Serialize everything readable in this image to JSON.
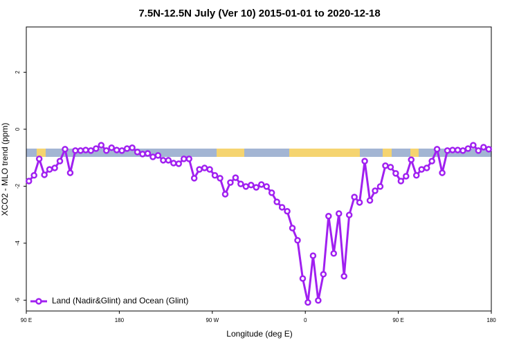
{
  "chart_data": {
    "type": "line",
    "title": "7.5N-12.5N July (Ver 10)   2015-01-01 to 2020-12-18",
    "x_label": "Longitude (deg E)",
    "y_label": "XCO2 - MLO trend (ppm)",
    "xlim": [
      90,
      540
    ],
    "ylim": [
      -6.38,
      3.59
    ],
    "xticks": [
      {
        "value": 90,
        "label": "90 E"
      },
      {
        "value": 180,
        "label": "180"
      },
      {
        "value": 270,
        "label": "90 W"
      },
      {
        "value": 360,
        "label": "0"
      },
      {
        "value": 450,
        "label": "90 E"
      },
      {
        "value": 540,
        "label": "180"
      }
    ],
    "yticks": [
      -6,
      -4,
      -2,
      0,
      2
    ],
    "legend": "bottom-left",
    "x": [
      92.5,
      97.5,
      102.5,
      107.5,
      112.5,
      117.5,
      122.5,
      127.5,
      132.5,
      137.5,
      142.5,
      147.5,
      152.5,
      157.5,
      162.5,
      167.5,
      172.5,
      177.5,
      182.5,
      187.5,
      192.5,
      197.5,
      202.5,
      207.5,
      212.5,
      217.5,
      222.5,
      227.5,
      232.5,
      237.5,
      242.5,
      247.5,
      252.5,
      257.5,
      262.5,
      267.5,
      272.5,
      277.5,
      282.5,
      287.5,
      292.5,
      297.5,
      302.5,
      307.5,
      312.5,
      317.5,
      322.5,
      327.5,
      332.5,
      337.5,
      342.5,
      347.5,
      352.5,
      357.5,
      362.5,
      367.5,
      372.5,
      377.5,
      382.5,
      387.5,
      392.5,
      397.5,
      402.5,
      407.5,
      412.5,
      417.5,
      422.5,
      427.5,
      432.5,
      437.5,
      442.5,
      447.5,
      452.5,
      457.5,
      462.5,
      467.5,
      472.5,
      477.5,
      482.5,
      487.5,
      492.5,
      497.5,
      502.5,
      507.5,
      512.5,
      517.5,
      522.5,
      527.5,
      532.5,
      537.5
    ],
    "series": [
      {
        "name": "Land (Nadir&Glint) and Ocean (Glint)",
        "color": "#a020f0",
        "values": [
          -1.82,
          -1.62,
          -1.04,
          -1.6,
          -1.41,
          -1.36,
          -1.12,
          -0.7,
          -1.53,
          -0.75,
          -0.75,
          -0.73,
          -0.75,
          -0.68,
          -0.56,
          -0.75,
          -0.65,
          -0.73,
          -0.75,
          -0.68,
          -0.65,
          -0.8,
          -0.87,
          -0.85,
          -0.97,
          -0.92,
          -1.09,
          -1.09,
          -1.19,
          -1.21,
          -1.04,
          -1.04,
          -1.72,
          -1.41,
          -1.36,
          -1.41,
          -1.62,
          -1.72,
          -2.28,
          -1.87,
          -1.7,
          -1.92,
          -2.01,
          -1.96,
          -2.04,
          -1.94,
          -2.01,
          -2.23,
          -2.55,
          -2.74,
          -2.88,
          -3.47,
          -3.9,
          -5.24,
          -6.08,
          -4.44,
          -6.01,
          -5.09,
          -3.05,
          -4.36,
          -2.96,
          -5.16,
          -3.01,
          -2.38,
          -2.57,
          -1.12,
          -2.5,
          -2.16,
          -2.01,
          -1.28,
          -1.33,
          -1.55,
          -1.82,
          -1.65,
          -1.07,
          -1.62,
          -1.41,
          -1.36,
          -1.12,
          -0.7,
          -1.53,
          -0.75,
          -0.73,
          -0.73,
          -0.75,
          -0.68,
          -0.56,
          -0.75,
          -0.63,
          -0.7
        ]
      }
    ]
  }
}
